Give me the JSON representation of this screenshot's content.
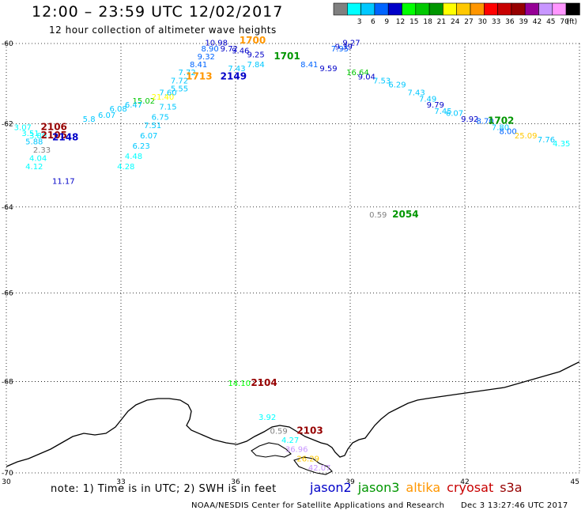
{
  "header": {
    "title": "12:00 – 23:59 UTC 12/02/2017",
    "subtitle": "12 hour collection of altimeter wave heights"
  },
  "color_scale": {
    "unit": "(ft)",
    "bins": [
      {
        "label": "",
        "color": "#808080"
      },
      {
        "label": "3",
        "color": "#00ffff"
      },
      {
        "label": "6",
        "color": "#00c8ff"
      },
      {
        "label": "9",
        "color": "#0064ff"
      },
      {
        "label": "12",
        "color": "#0000c8"
      },
      {
        "label": "15",
        "color": "#00ff00"
      },
      {
        "label": "18",
        "color": "#00c800"
      },
      {
        "label": "21",
        "color": "#009600"
      },
      {
        "label": "24",
        "color": "#ffff00"
      },
      {
        "label": "27",
        "color": "#ffc800"
      },
      {
        "label": "30",
        "color": "#ff9600"
      },
      {
        "label": "33",
        "color": "#ff0000"
      },
      {
        "label": "36",
        "color": "#c80000"
      },
      {
        "label": "39",
        "color": "#960000"
      },
      {
        "label": "42",
        "color": "#960096"
      },
      {
        "label": "45",
        "color": "#c896ff"
      },
      {
        "label": "70",
        "color": "#ff96ff"
      },
      {
        "label": "",
        "color": "#000000"
      }
    ]
  },
  "axes": {
    "lon_range": [
      30,
      45
    ],
    "lat_range": [
      -70,
      -60
    ],
    "lon_ticks": [
      "30",
      "33",
      "36",
      "39",
      "42",
      "45"
    ],
    "lat_ticks": [
      "-60",
      "-62",
      "-64",
      "-66",
      "-68",
      "-70"
    ],
    "grid": "dotted"
  },
  "chart_data": {
    "type": "scatter",
    "observations": [
      {
        "text": "10.98",
        "lon": 35.2,
        "lat": -60.05,
        "color": "#0000c8"
      },
      {
        "text": "9.27",
        "lon": 38.8,
        "lat": -60.05,
        "color": "#0000c8"
      },
      {
        "text": "8.90",
        "lon": 35.1,
        "lat": -60.2,
        "color": "#0064ff"
      },
      {
        "text": "9.72",
        "lon": 35.6,
        "lat": -60.2,
        "color": "#0000c8"
      },
      {
        "text": "9.46",
        "lon": 35.9,
        "lat": -60.25,
        "color": "#0000c8"
      },
      {
        "text": "7.95",
        "lon": 38.5,
        "lat": -60.2,
        "color": "#0064ff"
      },
      {
        "text": "9.39",
        "lon": 38.6,
        "lat": -60.15,
        "color": "#0000c8"
      },
      {
        "text": "9.32",
        "lon": 35.0,
        "lat": -60.4,
        "color": "#0064ff"
      },
      {
        "text": "9.25",
        "lon": 36.3,
        "lat": -60.35,
        "color": "#0000c8"
      },
      {
        "text": "8.41",
        "lon": 34.8,
        "lat": -60.6,
        "color": "#0064ff"
      },
      {
        "text": "7.43",
        "lon": 35.8,
        "lat": -60.7,
        "color": "#00c8ff"
      },
      {
        "text": "7.84",
        "lon": 36.3,
        "lat": -60.6,
        "color": "#00c8ff"
      },
      {
        "text": "8.41",
        "lon": 37.7,
        "lat": -60.6,
        "color": "#0064ff"
      },
      {
        "text": "9.59",
        "lon": 38.2,
        "lat": -60.7,
        "color": "#0000c8"
      },
      {
        "text": "7.72",
        "lon": 34.5,
        "lat": -60.8,
        "color": "#00c8ff"
      },
      {
        "text": "16.64",
        "lon": 38.9,
        "lat": -60.8,
        "color": "#00c800"
      },
      {
        "text": "9.04",
        "lon": 39.2,
        "lat": -60.9,
        "color": "#0000c8"
      },
      {
        "text": "7.53",
        "lon": 39.6,
        "lat": -61.0,
        "color": "#00c8ff"
      },
      {
        "text": "7.72",
        "lon": 34.3,
        "lat": -61.0,
        "color": "#00c8ff"
      },
      {
        "text": "6.29",
        "lon": 40.0,
        "lat": -61.1,
        "color": "#00c8ff"
      },
      {
        "text": "7.43",
        "lon": 40.5,
        "lat": -61.3,
        "color": "#00c8ff"
      },
      {
        "text": "7.49",
        "lon": 40.8,
        "lat": -61.45,
        "color": "#00c8ff"
      },
      {
        "text": "9.79",
        "lon": 41.0,
        "lat": -61.6,
        "color": "#0000c8"
      },
      {
        "text": "7.45",
        "lon": 41.2,
        "lat": -61.75,
        "color": "#00c8ff"
      },
      {
        "text": "6.07",
        "lon": 41.5,
        "lat": -61.8,
        "color": "#00c8ff"
      },
      {
        "text": "9.92",
        "lon": 41.9,
        "lat": -61.95,
        "color": "#0000c8"
      },
      {
        "text": "8.70",
        "lon": 42.3,
        "lat": -62.0,
        "color": "#0064ff"
      },
      {
        "text": "7.80",
        "lon": 42.7,
        "lat": -62.15,
        "color": "#00c8ff"
      },
      {
        "text": "8.00",
        "lon": 42.9,
        "lat": -62.25,
        "color": "#0064ff"
      },
      {
        "text": "25.09",
        "lon": 43.3,
        "lat": -62.35,
        "color": "#ffc800"
      },
      {
        "text": "7.76",
        "lon": 43.9,
        "lat": -62.45,
        "color": "#00c8ff"
      },
      {
        "text": "4.35",
        "lon": 44.3,
        "lat": -62.55,
        "color": "#00ffff"
      },
      {
        "text": "15.02",
        "lon": 33.3,
        "lat": -61.5,
        "color": "#00c800"
      },
      {
        "text": "21.40",
        "lon": 33.8,
        "lat": -61.4,
        "color": "#ffff00"
      },
      {
        "text": "7.60",
        "lon": 34.0,
        "lat": -61.3,
        "color": "#00c8ff"
      },
      {
        "text": "5.55",
        "lon": 34.3,
        "lat": -61.2,
        "color": "#00c8ff"
      },
      {
        "text": "6.08",
        "lon": 32.7,
        "lat": -61.7,
        "color": "#00c8ff"
      },
      {
        "text": "6.07",
        "lon": 32.4,
        "lat": -61.85,
        "color": "#00c8ff"
      },
      {
        "text": "5.8",
        "lon": 32.0,
        "lat": -61.95,
        "color": "#00c8ff"
      },
      {
        "text": "6.47",
        "lon": 33.1,
        "lat": -61.6,
        "color": "#00c8ff"
      },
      {
        "text": "7.15",
        "lon": 34.0,
        "lat": -61.65,
        "color": "#00c8ff"
      },
      {
        "text": "6.75",
        "lon": 33.8,
        "lat": -61.9,
        "color": "#00c8ff"
      },
      {
        "text": "7.51",
        "lon": 33.6,
        "lat": -62.1,
        "color": "#00c8ff"
      },
      {
        "text": "6.07",
        "lon": 33.5,
        "lat": -62.35,
        "color": "#00c8ff"
      },
      {
        "text": "6.23",
        "lon": 33.3,
        "lat": -62.6,
        "color": "#00c8ff"
      },
      {
        "text": "4.48",
        "lon": 33.1,
        "lat": -62.85,
        "color": "#00ffff"
      },
      {
        "text": "4.28",
        "lon": 32.9,
        "lat": -63.1,
        "color": "#00ffff"
      },
      {
        "text": "3.07",
        "lon": 30.2,
        "lat": -62.15,
        "color": "#00ffff"
      },
      {
        "text": "3.51",
        "lon": 30.4,
        "lat": -62.3,
        "color": "#00ffff"
      },
      {
        "text": "3.80",
        "lon": 30.6,
        "lat": -62.35,
        "color": "#00ffff"
      },
      {
        "text": "5.88",
        "lon": 30.5,
        "lat": -62.5,
        "color": "#00c8ff"
      },
      {
        "text": "2.33",
        "lon": 30.7,
        "lat": -62.7,
        "color": "#808080"
      },
      {
        "text": "4.04",
        "lon": 30.6,
        "lat": -62.9,
        "color": "#00ffff"
      },
      {
        "text": "4.12",
        "lon": 30.5,
        "lat": -63.1,
        "color": "#00ffff"
      },
      {
        "text": "11.17",
        "lon": 31.2,
        "lat": -63.45,
        "color": "#0000c8"
      },
      {
        "text": "0.59",
        "lon": 39.5,
        "lat": -64.25,
        "color": "#808080"
      },
      {
        "text": "14.10",
        "lon": 35.8,
        "lat": -68.1,
        "color": "#00ff00"
      },
      {
        "text": "3.92",
        "lon": 36.6,
        "lat": -68.85,
        "color": "#00ffff"
      },
      {
        "text": "0.59",
        "lon": 36.9,
        "lat": -69.15,
        "color": "#808080"
      },
      {
        "text": "4.27",
        "lon": 37.2,
        "lat": -69.35,
        "color": "#00ffff"
      },
      {
        "text": "36.96",
        "lon": 37.3,
        "lat": -69.55,
        "color": "#c896ff"
      },
      {
        "text": "26.29",
        "lon": 37.6,
        "lat": -69.75,
        "color": "#ffc800"
      },
      {
        "text": "42.07",
        "lon": 37.9,
        "lat": -69.95,
        "color": "#c896ff"
      }
    ],
    "satellite_ids": [
      {
        "text": "1700",
        "lon": 36.1,
        "lat": -60.0,
        "color": "#ff9600"
      },
      {
        "text": "1701",
        "lon": 37.0,
        "lat": -60.4,
        "color": "#009600"
      },
      {
        "text": "1713",
        "lon": 34.7,
        "lat": -60.9,
        "color": "#ff9600"
      },
      {
        "text": "2149",
        "lon": 35.6,
        "lat": -60.9,
        "color": "#0000c8"
      },
      {
        "text": "1702",
        "lon": 42.6,
        "lat": -62.0,
        "color": "#009600"
      },
      {
        "text": "2106",
        "lon": 30.9,
        "lat": -62.15,
        "color": "#960000"
      },
      {
        "text": "2105",
        "lon": 30.9,
        "lat": -62.35,
        "color": "#960000"
      },
      {
        "text": "2148",
        "lon": 31.2,
        "lat": -62.4,
        "color": "#0000c8"
      },
      {
        "text": "2054",
        "lon": 40.1,
        "lat": -64.25,
        "color": "#009600"
      },
      {
        "text": "2104",
        "lon": 36.4,
        "lat": -68.1,
        "color": "#960000"
      },
      {
        "text": "2103",
        "lon": 37.6,
        "lat": -69.15,
        "color": "#960000"
      }
    ]
  },
  "footer": {
    "note": "note: 1) Time is in UTC; 2) SWH is in feet",
    "satellites": [
      {
        "name": "jason2",
        "color": "#0000c8"
      },
      {
        "name": "jason3",
        "color": "#009600"
      },
      {
        "name": "altika",
        "color": "#ff9600"
      },
      {
        "name": "cryosat",
        "color": "#c80000"
      },
      {
        "name": "s3a",
        "color": "#960000"
      }
    ],
    "credit": "NOAA/NESDIS Center for Satellite Applications and Research",
    "timestamp": "Dec  3 13:27:46 UTC 2017"
  }
}
